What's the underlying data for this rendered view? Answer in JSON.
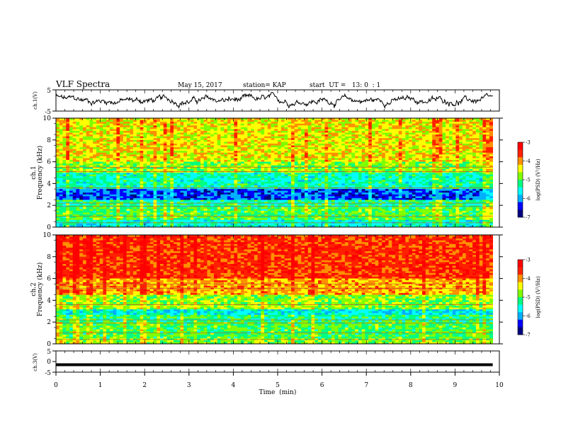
{
  "header": {
    "title": "VLF Spectra",
    "date": "May 15, 2017",
    "station": "station= KAP",
    "start": "start  UT =   13: 0  : 1"
  },
  "colors": {
    "spectrogram_scale": [
      "#000080",
      "#0000ff",
      "#00b0ff",
      "#00ffff",
      "#00ff80",
      "#80ff00",
      "#ffff00",
      "#ff9000",
      "#ff2000",
      "#ff0000",
      "#ffffff"
    ]
  },
  "chart_data": [
    {
      "type": "line",
      "panel": "channel-1-waveform",
      "ylabel": "ch.1(V)",
      "ylim": [
        -5,
        5
      ],
      "yticks": [
        5,
        -5
      ],
      "x_range_min": [
        0,
        9.85
      ],
      "description_of_values": "noisy voltage trace fluctuating roughly between -4 and +4 V"
    },
    {
      "type": "heatmap",
      "panel": "channel-1-spectrogram",
      "ylabel": "ch.1\nFrequency (kHz)",
      "ylim": [
        0,
        10
      ],
      "yticks": [
        0,
        2,
        4,
        6,
        8,
        10
      ],
      "x_range_min": [
        0,
        9.85
      ],
      "colorbar": {
        "label": "log(PSD) (V²/Hz)",
        "ticks": [
          -3,
          -4,
          -5,
          -6,
          -7
        ],
        "range": [
          -7,
          -3
        ]
      },
      "bands_khz": [
        {
          "from": 0.0,
          "to": 0.6,
          "logpsd": -5.5
        },
        {
          "from": 0.6,
          "to": 1.8,
          "logpsd": -5.0
        },
        {
          "from": 1.8,
          "to": 2.5,
          "logpsd": -5.3
        },
        {
          "from": 2.5,
          "to": 3.5,
          "logpsd": -6.3
        },
        {
          "from": 3.5,
          "to": 5.0,
          "logpsd": -5.4
        },
        {
          "from": 5.0,
          "to": 6.0,
          "logpsd": -4.8
        },
        {
          "from": 6.0,
          "to": 10.0,
          "logpsd": -4.4
        }
      ]
    },
    {
      "type": "heatmap",
      "panel": "channel-2-spectrogram",
      "ylabel": "ch.2\nFrequency (kHz)",
      "ylim": [
        0,
        10
      ],
      "yticks": [
        0,
        2,
        4,
        6,
        8,
        10
      ],
      "x_range_min": [
        0,
        9.85
      ],
      "colorbar": {
        "label": "log(PSD) (V²/Hz)",
        "ticks": [
          -3,
          -4,
          -5,
          -6,
          -7
        ],
        "range": [
          -7,
          -3
        ]
      },
      "bands_khz": [
        {
          "from": 0.0,
          "to": 0.5,
          "logpsd": -4.8
        },
        {
          "from": 0.5,
          "to": 2.0,
          "logpsd": -5.0
        },
        {
          "from": 2.0,
          "to": 2.6,
          "logpsd": -5.2
        },
        {
          "from": 2.6,
          "to": 3.2,
          "logpsd": -5.7
        },
        {
          "from": 3.2,
          "to": 4.5,
          "logpsd": -4.8
        },
        {
          "from": 4.5,
          "to": 6.0,
          "logpsd": -4.1
        },
        {
          "from": 6.0,
          "to": 10.0,
          "logpsd": -3.6
        }
      ]
    },
    {
      "type": "line",
      "panel": "channel-3-waveform",
      "ylabel": "ch.3(V)",
      "ylim": [
        -5,
        5
      ],
      "yticks": [
        5,
        0,
        -5
      ],
      "x_range_min": [
        0,
        9.85
      ],
      "description_of_values": "nearly constant level at about -1.5 V"
    }
  ],
  "xaxis": {
    "label": "Time  (min)",
    "range": [
      0,
      10
    ],
    "ticks": [
      "0",
      "1",
      "2",
      "3",
      "4",
      "5",
      "6",
      "7",
      "8",
      "9",
      "10"
    ]
  }
}
